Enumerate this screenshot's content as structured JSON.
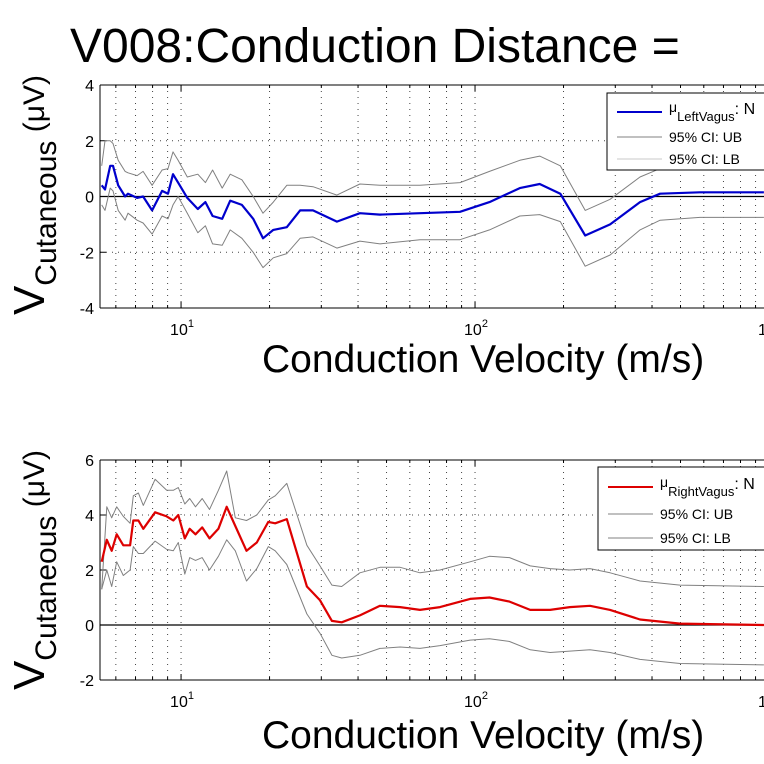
{
  "title": "V008:Conduction Distance =",
  "chart_data": [
    {
      "type": "line",
      "xscale": "log",
      "xlim": [
        5.3,
        1000
      ],
      "ylim": [
        -4,
        4
      ],
      "yticks": [
        "4",
        "2",
        "0",
        "-2",
        "-4"
      ],
      "xticks": [
        {
          "base": "10",
          "exp": "1"
        },
        {
          "base": "10",
          "exp": "2"
        },
        {
          "base": "1",
          "exp": ""
        }
      ],
      "xlabel": "Conduction Velocity (m/s)",
      "ylabel": {
        "main": "V",
        "sub": "Cutaneous",
        "unit": " (μV)"
      },
      "grid": "dotted",
      "zero_line": true,
      "legend_position": "top-right",
      "legend": [
        {
          "mu": "μ",
          "sub": "LeftVagus",
          "rest": ": N",
          "color": "#0000cc"
        },
        {
          "text": "95% CI: UB",
          "color": "#808080"
        },
        {
          "text": "95% CI: LB",
          "color": "#c8c8c8"
        }
      ],
      "x": [
        5.37,
        5.51,
        5.74,
        5.87,
        6.11,
        6.45,
        6.6,
        7.09,
        7.43,
        7.97,
        8.62,
        9.03,
        9.39,
        9.77,
        10.5,
        11.4,
        12.1,
        12.8,
        13.8,
        14.7,
        16.1,
        17.6,
        19.0,
        20.6,
        22.9,
        25.4,
        28.1,
        33.9,
        40.6,
        47.5,
        65.0,
        88.9,
        112,
        142,
        166,
        195,
        237,
        288,
        364,
        426,
        582,
        961
      ],
      "series": [
        {
          "role": "mean",
          "color": "#0000cc",
          "values": [
            0.4,
            0.25,
            1.1,
            1.1,
            0.4,
            0,
            0.1,
            -0.05,
            0,
            -0.5,
            0.2,
            0.1,
            0.8,
            0.5,
            -0.05,
            -0.45,
            -0.2,
            -0.7,
            -0.8,
            -0.15,
            -0.3,
            -0.8,
            -1.5,
            -1.2,
            -1.1,
            -0.5,
            -0.5,
            -0.9,
            -0.6,
            -0.65,
            -0.6,
            -0.55,
            -0.2,
            0.3,
            0.45,
            0.1,
            -1.4,
            -1.0,
            -0.2,
            0.1,
            0.15,
            0.15
          ]
        },
        {
          "role": "ub",
          "color": "#808080",
          "values": [
            1.1,
            2.0,
            2.0,
            1.9,
            1.3,
            0.9,
            0.85,
            0.75,
            0.9,
            0.4,
            0.95,
            1.0,
            1.6,
            1.3,
            0.7,
            0.8,
            0.5,
            0.95,
            0.3,
            0.8,
            0.6,
            0,
            -0.6,
            -0.2,
            0.4,
            0.4,
            0.35,
            0.05,
            0.45,
            0.4,
            0.4,
            0.5,
            0.9,
            1.3,
            1.45,
            1.1,
            -0.5,
            -0.1,
            0.7,
            1.0,
            1.1,
            1.1
          ]
        },
        {
          "role": "lb",
          "color": "#808080",
          "values": [
            -0.3,
            -0.5,
            0.3,
            0.2,
            -0.5,
            -0.85,
            -0.6,
            -0.85,
            -0.95,
            -1.35,
            -0.7,
            -0.8,
            -0.3,
            0,
            -0.6,
            -1.3,
            -1.05,
            -1.7,
            -1.75,
            -1.2,
            -1.5,
            -2.0,
            -2.55,
            -2.2,
            -2.05,
            -1.5,
            -1.45,
            -1.85,
            -1.6,
            -1.7,
            -1.55,
            -1.55,
            -1.2,
            -0.7,
            -0.65,
            -0.9,
            -2.5,
            -2.1,
            -1.2,
            -0.85,
            -0.75,
            -0.75
          ]
        }
      ]
    },
    {
      "type": "line",
      "xscale": "log",
      "xlim": [
        5.3,
        1000
      ],
      "ylim": [
        -2,
        6
      ],
      "yticks": [
        "6",
        "4",
        "2",
        "0",
        "-2"
      ],
      "xticks": [
        {
          "base": "10",
          "exp": "1"
        },
        {
          "base": "10",
          "exp": "2"
        },
        {
          "base": "1",
          "exp": ""
        }
      ],
      "xlabel": "Conduction Velocity (m/s)",
      "ylabel": {
        "main": "V",
        "sub": "Cutaneous",
        "unit": " (μV)"
      },
      "grid": "dotted",
      "zero_line": true,
      "legend_position": "top-right",
      "legend": [
        {
          "mu": "μ",
          "sub": "RightVagus",
          "rest": ": N",
          "color": "#dd0000"
        },
        {
          "text": "95% CI: UB",
          "color": "#808080"
        },
        {
          "text": "95% CI: LB",
          "color": "#808080"
        }
      ],
      "x": [
        5.37,
        5.59,
        5.81,
        6.04,
        6.36,
        6.71,
        6.88,
        7.16,
        7.44,
        8.16,
        8.94,
        9.41,
        9.79,
        10.3,
        10.7,
        11.2,
        11.8,
        12.5,
        13.4,
        14.3,
        15.3,
        16.7,
        18.1,
        19.8,
        20.9,
        22.9,
        26.8,
        29.7,
        32.6,
        35.2,
        40.6,
        47.5,
        55.6,
        65.0,
        76.0,
        96.2,
        112,
        131,
        154,
        180,
        210,
        246,
        288,
        364,
        498,
        961
      ],
      "series": [
        {
          "role": "mean",
          "color": "#dd0000",
          "values": [
            2.3,
            3.1,
            2.7,
            3.3,
            2.9,
            2.9,
            3.8,
            3.8,
            3.5,
            4.1,
            3.95,
            3.8,
            4.0,
            3.15,
            3.5,
            3.3,
            3.55,
            3.15,
            3.5,
            4.3,
            3.6,
            2.7,
            3.0,
            3.75,
            3.7,
            3.85,
            1.4,
            0.9,
            0.15,
            0.1,
            0.35,
            0.7,
            0.65,
            0.55,
            0.65,
            0.95,
            1.0,
            0.85,
            0.55,
            0.55,
            0.65,
            0.7,
            0.55,
            0.2,
            0.05,
            0.0
          ]
        },
        {
          "role": "ub",
          "color": "#808080",
          "values": [
            1.3,
            4.3,
            3.9,
            4.3,
            3.95,
            3.7,
            4.7,
            4.8,
            4.35,
            5.3,
            4.9,
            4.9,
            5.0,
            4.4,
            4.6,
            4.3,
            4.6,
            4.2,
            4.9,
            5.6,
            3.9,
            3.8,
            4.0,
            4.55,
            4.7,
            5.15,
            2.9,
            2.15,
            1.45,
            1.4,
            1.9,
            2.1,
            2.1,
            1.9,
            2.0,
            2.3,
            2.5,
            2.45,
            2.15,
            2.05,
            2.0,
            2.05,
            1.9,
            1.6,
            1.45,
            1.4
          ]
        },
        {
          "role": "lb",
          "color": "#808080",
          "values": [
            1.3,
            2.0,
            1.4,
            2.3,
            1.8,
            2.0,
            2.85,
            2.6,
            2.6,
            3.05,
            2.75,
            2.7,
            3.0,
            1.85,
            2.45,
            2.35,
            2.45,
            2.0,
            2.5,
            3.1,
            2.7,
            1.6,
            2.05,
            2.85,
            2.7,
            2.2,
            0.4,
            -0.3,
            -1.1,
            -1.2,
            -1.1,
            -0.85,
            -0.8,
            -0.85,
            -0.75,
            -0.55,
            -0.5,
            -0.6,
            -0.9,
            -1.0,
            -0.95,
            -0.9,
            -1.0,
            -1.25,
            -1.4,
            -1.45
          ]
        }
      ]
    }
  ]
}
